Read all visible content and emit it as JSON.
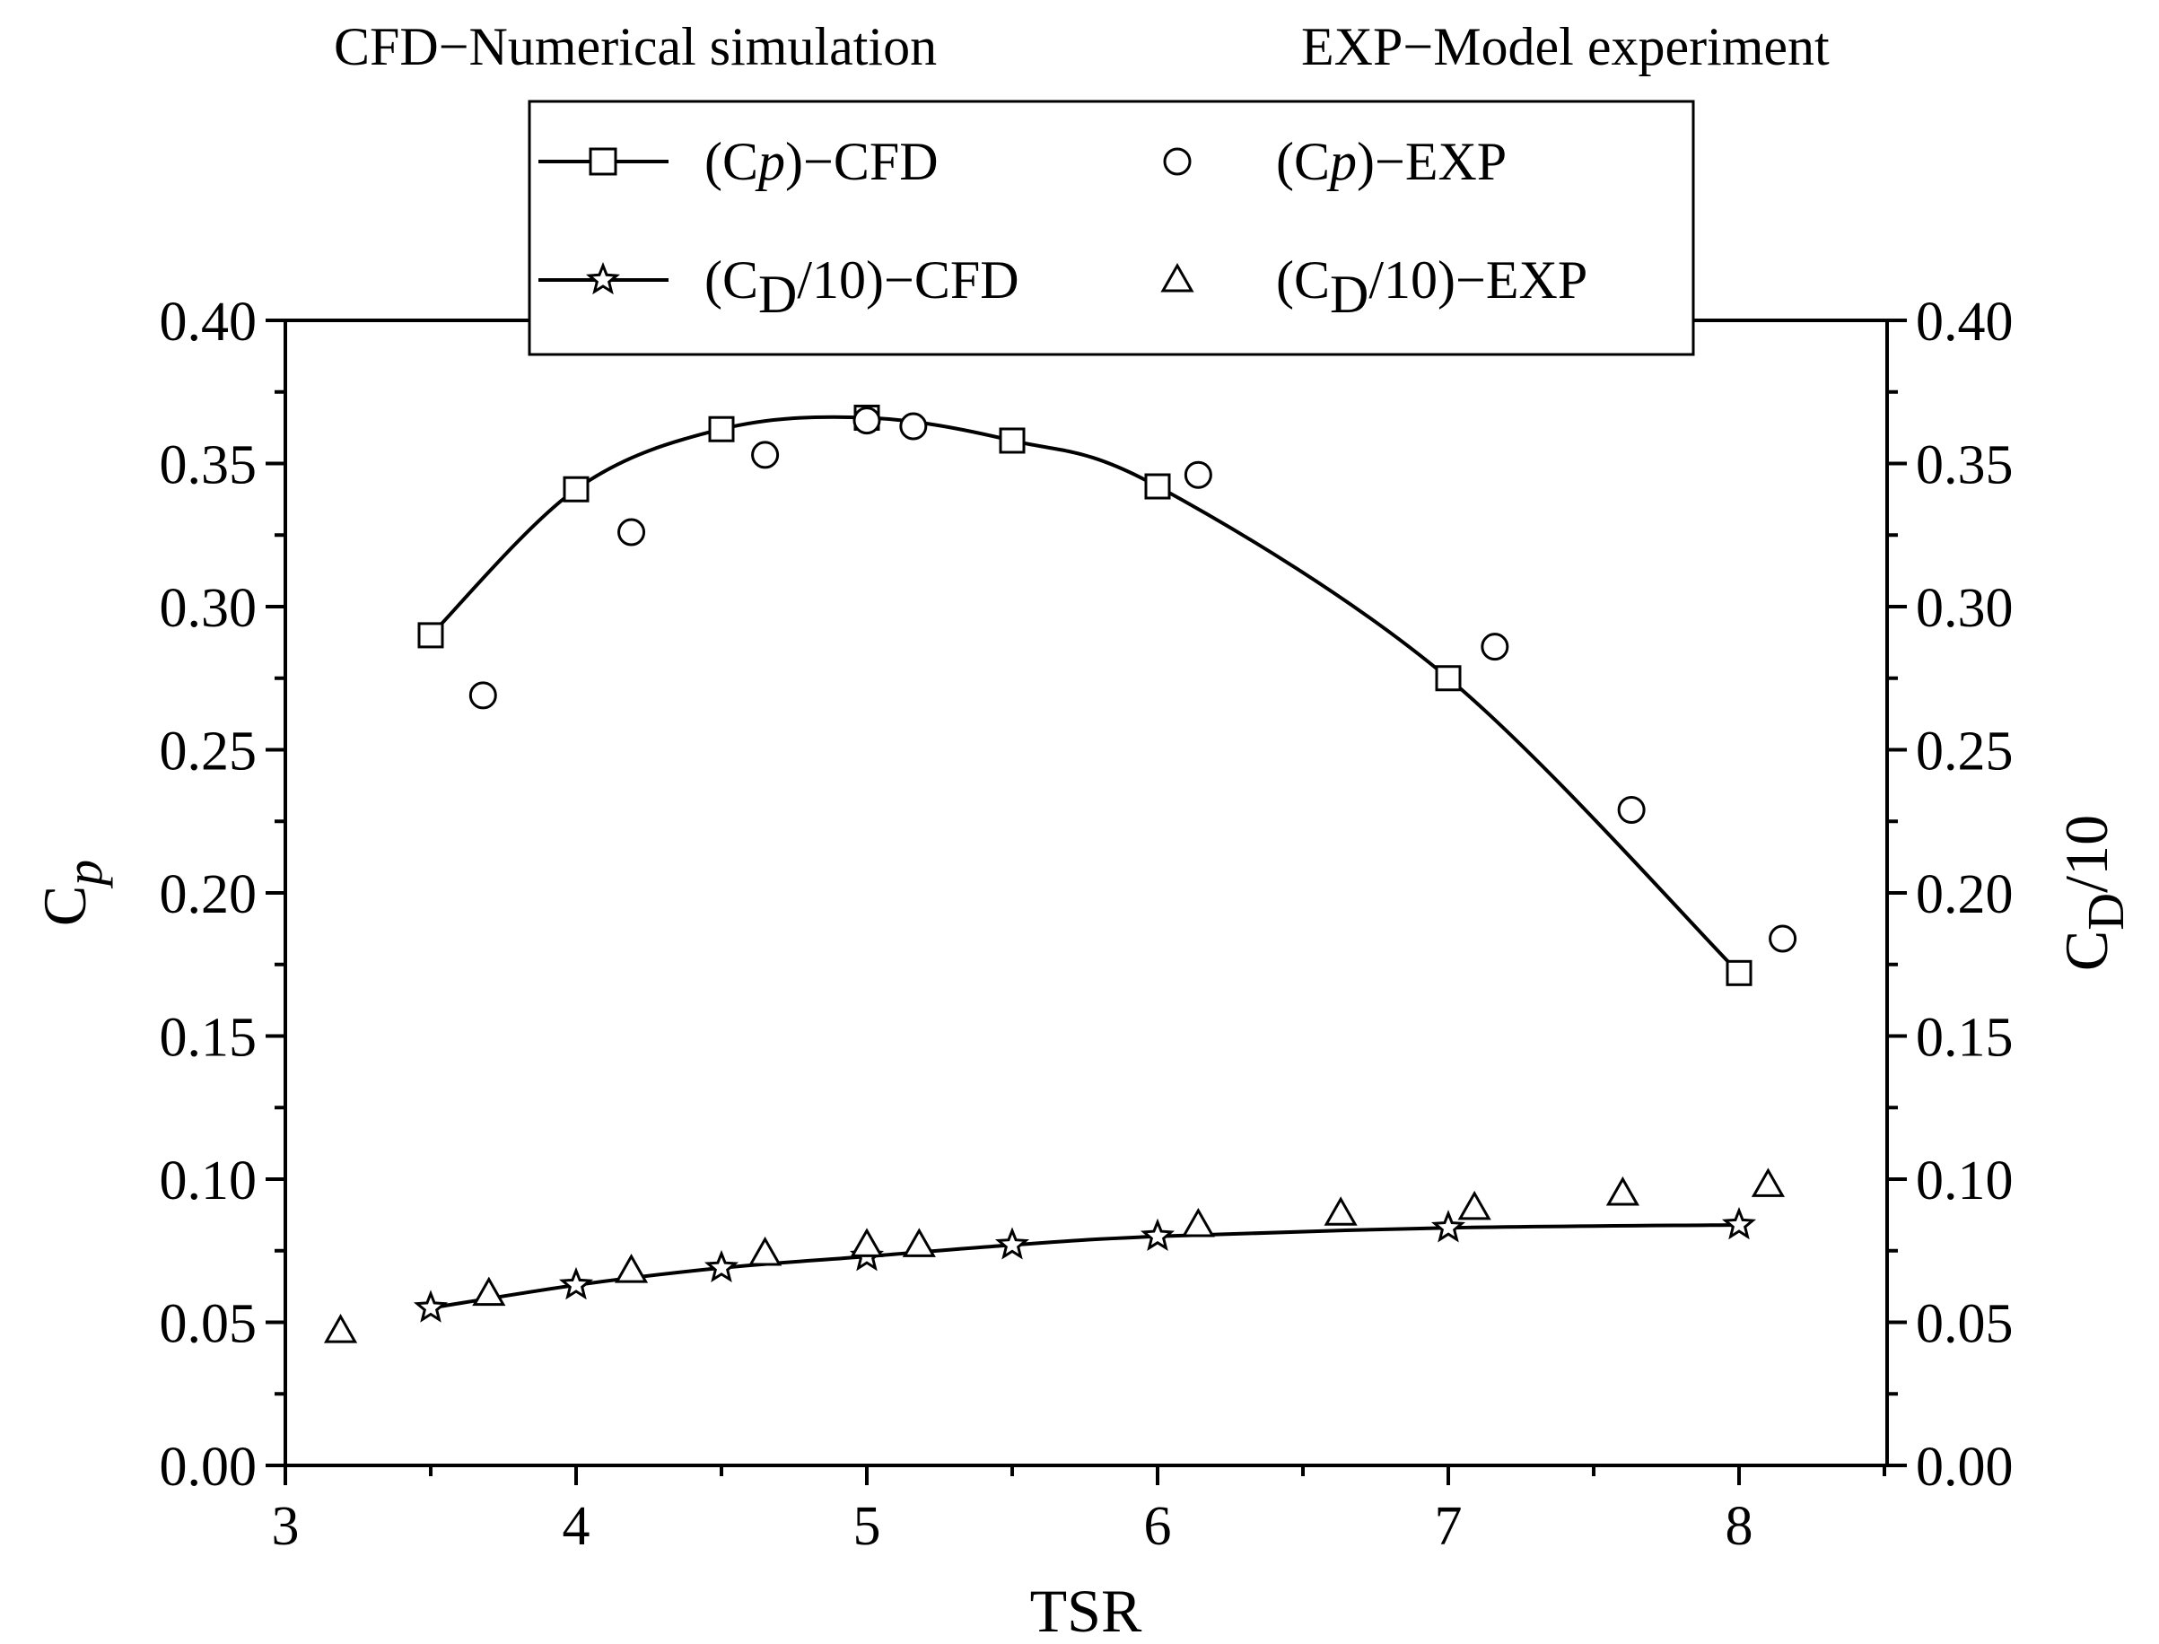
{
  "chart_data": {
    "type": "line",
    "notes": {
      "cfd": "CFD−Numerical simulation",
      "exp": "EXP−Model experiment"
    },
    "xlabel": "TSR",
    "ylabel": {
      "main": "C",
      "sub": "p"
    },
    "ylabel_right": {
      "main": "C",
      "sub": "D",
      "rest": "/10"
    },
    "xlim": [
      3,
      8.5
    ],
    "ylim": [
      0,
      0.4
    ],
    "x_ticks": [
      "3",
      "4",
      "5",
      "6",
      "7",
      "8"
    ],
    "y_ticks": [
      "0.00",
      "0.05",
      "0.10",
      "0.15",
      "0.20",
      "0.25",
      "0.30",
      "0.35",
      "0.40"
    ],
    "y_ticks_right": [
      "0.00",
      "0.05",
      "0.10",
      "0.15",
      "0.20",
      "0.25",
      "0.30",
      "0.35",
      "0.40"
    ],
    "legend": {
      "cp_cfd": {
        "pre": "(C",
        "italic": "p",
        "post": ")−CFD"
      },
      "cp_exp": {
        "pre": "(C",
        "italic": "p",
        "post": ")−EXP"
      },
      "cd_cfd": {
        "pre": "(C",
        "sub": "D",
        "post": "/10)−CFD"
      },
      "cd_exp": {
        "pre": "(C",
        "sub": "D",
        "post": "/10)−EXP"
      }
    },
    "series": [
      {
        "name": "(Cp)-CFD",
        "marker": "square",
        "line": true,
        "points": [
          [
            3.5,
            0.29
          ],
          [
            4.0,
            0.341
          ],
          [
            4.5,
            0.362
          ],
          [
            5.0,
            0.366
          ],
          [
            5.5,
            0.358
          ],
          [
            6.0,
            0.342
          ],
          [
            7.0,
            0.275
          ],
          [
            8.0,
            0.172
          ]
        ]
      },
      {
        "name": "(Cp)-EXP",
        "marker": "circle",
        "line": false,
        "points": [
          [
            3.68,
            0.269
          ],
          [
            4.19,
            0.326
          ],
          [
            4.65,
            0.353
          ],
          [
            5.0,
            0.365
          ],
          [
            5.16,
            0.363
          ],
          [
            6.14,
            0.346
          ],
          [
            7.16,
            0.286
          ],
          [
            7.63,
            0.229
          ],
          [
            8.15,
            0.184
          ]
        ]
      },
      {
        "name": "(CD/10)-CFD",
        "marker": "star",
        "line": true,
        "points": [
          [
            3.5,
            0.055
          ],
          [
            4.0,
            0.063
          ],
          [
            4.5,
            0.069
          ],
          [
            5.0,
            0.073
          ],
          [
            5.5,
            0.077
          ],
          [
            6.0,
            0.08
          ],
          [
            7.0,
            0.083
          ],
          [
            8.0,
            0.084
          ]
        ]
      },
      {
        "name": "(CD/10)-EXP",
        "marker": "triangle",
        "line": false,
        "points": [
          [
            3.19,
            0.047
          ],
          [
            3.7,
            0.06
          ],
          [
            4.19,
            0.068
          ],
          [
            4.65,
            0.074
          ],
          [
            5.0,
            0.077
          ],
          [
            5.18,
            0.077
          ],
          [
            6.14,
            0.084
          ],
          [
            6.63,
            0.088
          ],
          [
            7.09,
            0.09
          ],
          [
            7.6,
            0.095
          ],
          [
            8.1,
            0.098
          ]
        ]
      }
    ]
  }
}
